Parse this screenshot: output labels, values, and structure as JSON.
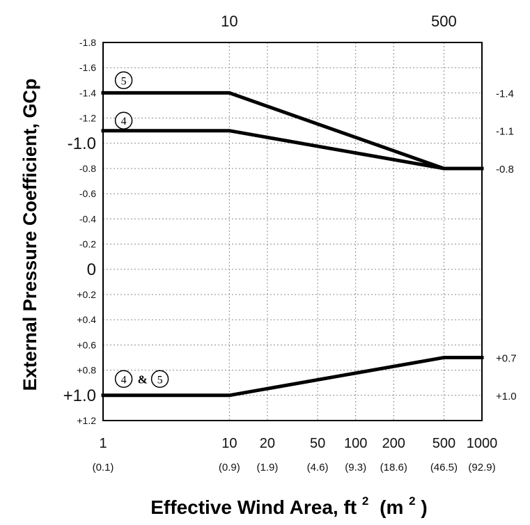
{
  "chart_data": {
    "type": "line",
    "title": "",
    "xlabel": "Effective Wind Area, ft",
    "xlabel_sup": "2",
    "xlabel_metric": "(m",
    "xlabel_metric_sup": "2",
    "xlabel_close": " )",
    "ylabel": "External Pressure Coefficient, GCp",
    "x_scale": "log",
    "xlim": [
      1,
      1000
    ],
    "ylim": [
      -1.8,
      1.2
    ],
    "y_inverted": true,
    "grid": true,
    "x_ticks": [
      {
        "value": 1,
        "label": "1",
        "sub": "(0.1)"
      },
      {
        "value": 10,
        "label": "10",
        "sub": "(0.9)"
      },
      {
        "value": 20,
        "label": "20",
        "sub": "(1.9)"
      },
      {
        "value": 50,
        "label": "50",
        "sub": "(4.6)"
      },
      {
        "value": 100,
        "label": "100",
        "sub": "(9.3)"
      },
      {
        "value": 200,
        "label": "200",
        "sub": "(18.6)"
      },
      {
        "value": 500,
        "label": "500",
        "sub": "(46.5)"
      },
      {
        "value": 1000,
        "label": "1000",
        "sub": "(92.9)"
      }
    ],
    "top_ticks": [
      {
        "value": 10,
        "label": "10"
      },
      {
        "value": 500,
        "label": "500"
      }
    ],
    "y_ticks": [
      {
        "value": -1.8,
        "label": "-1.8",
        "big": false
      },
      {
        "value": -1.6,
        "label": "-1.6",
        "big": false
      },
      {
        "value": -1.4,
        "label": "-1.4",
        "big": false
      },
      {
        "value": -1.2,
        "label": "-1.2",
        "big": false
      },
      {
        "value": -1.0,
        "label": "-1.0",
        "big": true
      },
      {
        "value": -0.8,
        "label": "-0.8",
        "big": false
      },
      {
        "value": -0.6,
        "label": "-0.6",
        "big": false
      },
      {
        "value": -0.4,
        "label": "-0.4",
        "big": false
      },
      {
        "value": -0.2,
        "label": "-0.2",
        "big": false
      },
      {
        "value": 0,
        "label": "0",
        "big": true
      },
      {
        "value": 0.2,
        "label": "+0.2",
        "big": false
      },
      {
        "value": 0.4,
        "label": "+0.4",
        "big": false
      },
      {
        "value": 0.6,
        "label": "+0.6",
        "big": false
      },
      {
        "value": 0.8,
        "label": "+0.8",
        "big": false
      },
      {
        "value": 1.0,
        "label": "+1.0",
        "big": true
      },
      {
        "value": 1.2,
        "label": "+1.2",
        "big": false
      }
    ],
    "series": [
      {
        "zone": "5",
        "points": [
          [
            1,
            -1.4
          ],
          [
            10,
            -1.4
          ],
          [
            500,
            -0.8
          ],
          [
            1000,
            -0.8
          ]
        ]
      },
      {
        "zone": "4",
        "points": [
          [
            1,
            -1.1
          ],
          [
            10,
            -1.1
          ],
          [
            500,
            -0.8
          ],
          [
            1000,
            -0.8
          ]
        ]
      },
      {
        "zone": "4 & 5",
        "points": [
          [
            1,
            1.0
          ],
          [
            10,
            1.0
          ],
          [
            500,
            0.7
          ],
          [
            1000,
            0.7
          ]
        ]
      }
    ],
    "zone_labels": [
      {
        "id": "5",
        "items": [
          "5"
        ],
        "at": [
          1.25,
          -1.5
        ]
      },
      {
        "id": "4",
        "items": [
          "4"
        ],
        "at": [
          1.25,
          -1.18
        ]
      },
      {
        "id": "4-5",
        "items": [
          "4",
          "&",
          "5"
        ],
        "at": [
          1.25,
          0.87
        ]
      }
    ],
    "end_labels": [
      {
        "value": -1.4,
        "label": "-1.4"
      },
      {
        "value": -1.1,
        "label": "-1.1"
      },
      {
        "value": -0.8,
        "label": "-0.8"
      },
      {
        "value": 0.7,
        "label": "+0.7"
      },
      {
        "value": 1.0,
        "label": "+1.0"
      }
    ]
  }
}
